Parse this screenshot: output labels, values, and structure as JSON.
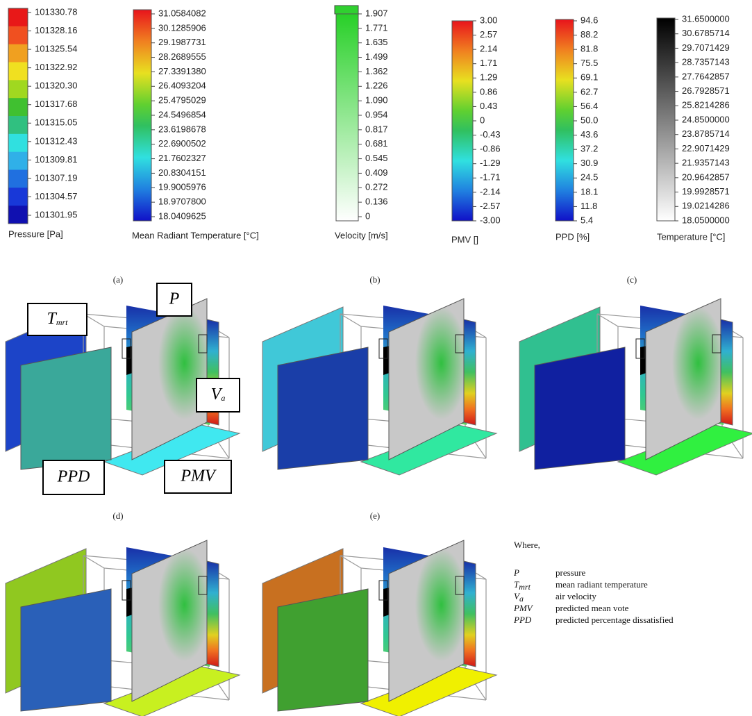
{
  "legends": [
    {
      "title": "Pressure [Pa]",
      "labels": [
        "101330.78",
        "101328.16",
        "101325.54",
        "101322.92",
        "101320.30",
        "101317.68",
        "101315.05",
        "101312.43",
        "101309.81",
        "101307.19",
        "101304.57",
        "101301.95"
      ]
    },
    {
      "title": "Mean Radiant Temperature [°C]",
      "labels": [
        "31.0584082",
        "30.1285906",
        "29.1987731",
        "28.2689555",
        "27.3391380",
        "26.4093204",
        "25.4795029",
        "24.5496854",
        "23.6198678",
        "22.6900502",
        "21.7602327",
        "20.8304151",
        "19.9005976",
        "18.9707800",
        "18.0409625"
      ]
    },
    {
      "title": "Velocity [m/s]",
      "labels": [
        "1.907",
        "1.771",
        "1.635",
        "1.499",
        "1.362",
        "1.226",
        "1.090",
        "0.954",
        "0.817",
        "0.681",
        "0.545",
        "0.409",
        "0.272",
        "0.136",
        "0"
      ]
    },
    {
      "title": "PMV []",
      "labels": [
        "3.00",
        "2.57",
        "2.14",
        "1.71",
        "1.29",
        "0.86",
        "0.43",
        "0",
        "-0.43",
        "-0.86",
        "-1.29",
        "-1.71",
        "-2.14",
        "-2.57",
        "-3.00"
      ]
    },
    {
      "title": "PPD [%]",
      "labels": [
        "94.6",
        "88.2",
        "81.8",
        "75.5",
        "69.1",
        "62.7",
        "56.4",
        "50.0",
        "43.6",
        "37.2",
        "30.9",
        "24.5",
        "18.1",
        "11.8",
        "5.4"
      ]
    },
    {
      "title": "Temperature [°C]",
      "labels": [
        "31.6500000",
        "30.6785714",
        "29.7071429",
        "28.7357143",
        "27.7642857",
        "26.7928571",
        "25.8214286",
        "24.8500000",
        "23.8785714",
        "22.9071429",
        "21.9357143",
        "20.9642857",
        "19.9928571",
        "19.0214286",
        "18.0500000"
      ]
    }
  ],
  "panels": [
    "(a)",
    "(b)",
    "(c)",
    "(d)",
    "(e)"
  ],
  "annotations": {
    "t_mrt": {
      "symbol": "T",
      "subscript": "mrt"
    },
    "p": {
      "symbol": "P"
    },
    "v_a": {
      "symbol": "V",
      "subscript": "a"
    },
    "ppd": {
      "symbol": "PPD"
    },
    "pmv": {
      "symbol": "PMV"
    }
  },
  "key": {
    "heading": "Where,",
    "entries": [
      {
        "symbol": "P",
        "meaning": "pressure"
      },
      {
        "symbol": "T",
        "subscript": "mrt",
        "meaning": "mean radiant temperature"
      },
      {
        "symbol": "V",
        "subscript": "a",
        "meaning": "air velocity"
      },
      {
        "symbol": "PMV",
        "meaning": "predicted mean vote"
      },
      {
        "symbol": "PPD",
        "meaning": "predicted percentage dissatisfied"
      }
    ]
  }
}
